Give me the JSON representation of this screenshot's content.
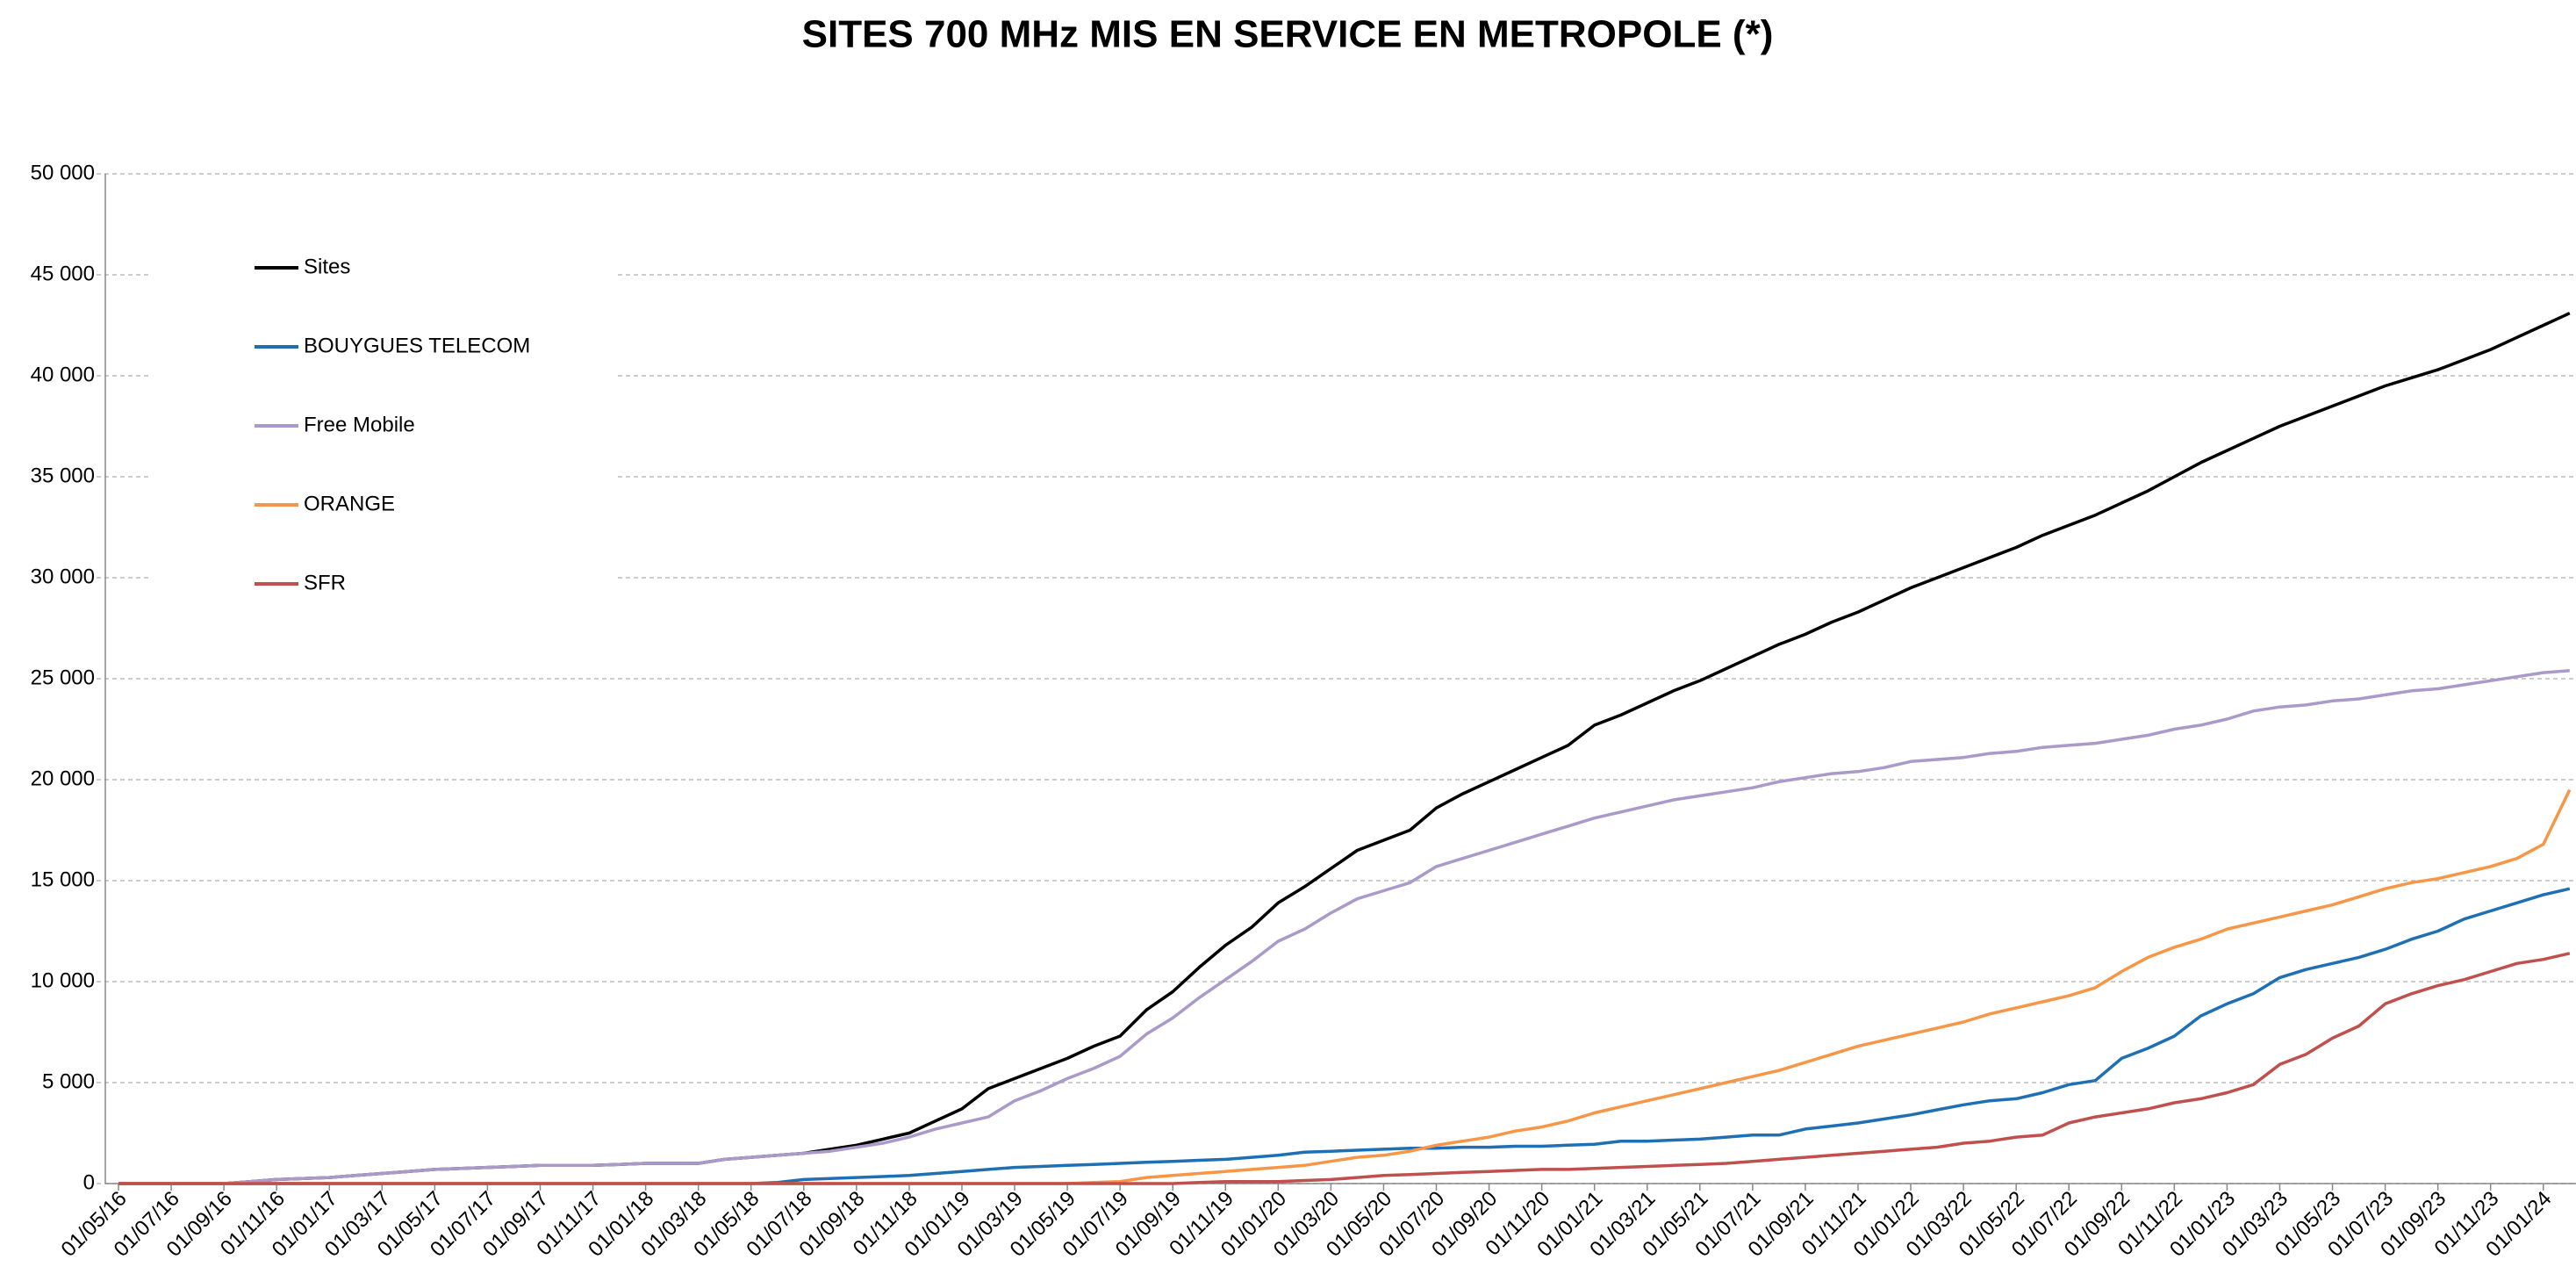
{
  "chart_data": {
    "type": "line",
    "title": "SITES 700 MHz MIS EN SERVICE EN METROPOLE (*)",
    "categories": [
      "01/05/16",
      null,
      "01/07/16",
      null,
      "01/09/16",
      null,
      "01/11/16",
      null,
      "01/01/17",
      null,
      "01/03/17",
      null,
      "01/05/17",
      null,
      "01/07/17",
      null,
      "01/09/17",
      null,
      "01/11/17",
      null,
      "01/01/18",
      null,
      "01/03/18",
      null,
      "01/05/18",
      null,
      "01/07/18",
      null,
      "01/09/18",
      null,
      "01/11/18",
      null,
      "01/01/19",
      null,
      "01/03/19",
      null,
      "01/05/19",
      null,
      "01/07/19",
      null,
      "01/09/19",
      null,
      "01/11/19",
      null,
      "01/01/20",
      null,
      "01/03/20",
      null,
      "01/05/20",
      null,
      "01/07/20",
      null,
      "01/09/20",
      null,
      "01/11/20",
      null,
      "01/01/21",
      null,
      "01/03/21",
      null,
      "01/05/21",
      null,
      "01/07/21",
      null,
      "01/09/21",
      null,
      "01/11/21",
      null,
      "01/01/22",
      null,
      "01/03/22",
      null,
      "01/05/22",
      null,
      "01/07/22",
      null,
      "01/09/22",
      null,
      "01/11/22",
      null,
      "01/01/23",
      null,
      "01/03/23",
      null,
      "01/05/23",
      null,
      "01/07/23",
      null,
      "01/09/23",
      null,
      "01/11/23",
      null,
      "01/01/24",
      null
    ],
    "series": [
      {
        "name": "Sites",
        "color": "#000000",
        "values": [
          0,
          0,
          0,
          0,
          0,
          100,
          200,
          250,
          300,
          400,
          500,
          600,
          700,
          750,
          800,
          850,
          900,
          900,
          900,
          950,
          1000,
          1000,
          1000,
          1200,
          1300,
          1400,
          1500,
          1700,
          1900,
          2200,
          2500,
          3100,
          3700,
          4700,
          5200,
          5700,
          6200,
          6800,
          7300,
          8600,
          9500,
          10700,
          11800,
          12700,
          13900,
          14700,
          15600,
          16500,
          17000,
          17500,
          18600,
          19300,
          19900,
          20500,
          21100,
          21700,
          22700,
          23200,
          23800,
          24400,
          24900,
          25500,
          26100,
          26700,
          27200,
          27800,
          28300,
          28900,
          29500,
          30000,
          30500,
          31000,
          31500,
          32100,
          32600,
          33100,
          33700,
          34300,
          35000,
          35700,
          36300,
          36900,
          37500,
          38000,
          38500,
          39000,
          39500,
          39900,
          40300,
          40800,
          41300,
          41900,
          42500,
          43100
        ]
      },
      {
        "name": "BOUYGUES TELECOM",
        "color": "#1f6fb5",
        "values": [
          0,
          0,
          0,
          0,
          0,
          0,
          0,
          0,
          0,
          0,
          0,
          0,
          0,
          0,
          0,
          0,
          0,
          0,
          0,
          0,
          0,
          0,
          0,
          0,
          0,
          50,
          200,
          250,
          300,
          350,
          400,
          500,
          600,
          700,
          800,
          850,
          900,
          950,
          1000,
          1050,
          1100,
          1150,
          1200,
          1300,
          1400,
          1550,
          1600,
          1650,
          1700,
          1750,
          1750,
          1800,
          1800,
          1850,
          1850,
          1900,
          1950,
          2100,
          2100,
          2150,
          2200,
          2300,
          2400,
          2400,
          2700,
          2850,
          3000,
          3200,
          3400,
          3650,
          3900,
          4100,
          4200,
          4500,
          4900,
          5100,
          6200,
          6700,
          7300,
          8300,
          8900,
          9400,
          10200,
          10600,
          10900,
          11200,
          11600,
          12100,
          12500,
          13100,
          13500,
          13900,
          14300,
          14600
        ]
      },
      {
        "name": "Free Mobile",
        "color": "#a99ac9",
        "values": [
          0,
          0,
          0,
          0,
          0,
          100,
          200,
          250,
          300,
          400,
          500,
          600,
          700,
          750,
          800,
          850,
          900,
          900,
          900,
          950,
          1000,
          1000,
          1000,
          1200,
          1300,
          1400,
          1500,
          1600,
          1800,
          2000,
          2300,
          2700,
          3000,
          3300,
          4100,
          4600,
          5200,
          5700,
          6300,
          7400,
          8200,
          9200,
          10100,
          11000,
          12000,
          12600,
          13400,
          14100,
          14500,
          14900,
          15700,
          16100,
          16500,
          16900,
          17300,
          17700,
          18100,
          18400,
          18700,
          19000,
          19200,
          19400,
          19600,
          19900,
          20100,
          20300,
          20400,
          20600,
          20900,
          21000,
          21100,
          21300,
          21400,
          21600,
          21700,
          21800,
          22000,
          22200,
          22500,
          22700,
          23000,
          23400,
          23600,
          23700,
          23900,
          24000,
          24200,
          24400,
          24500,
          24700,
          24900,
          25100,
          25300,
          25400
        ]
      },
      {
        "name": "ORANGE",
        "color": "#f79646",
        "values": [
          0,
          0,
          0,
          0,
          0,
          0,
          0,
          0,
          0,
          0,
          0,
          0,
          0,
          0,
          0,
          0,
          0,
          0,
          0,
          0,
          0,
          0,
          0,
          0,
          0,
          0,
          0,
          0,
          0,
          0,
          0,
          0,
          0,
          0,
          0,
          0,
          0,
          50,
          100,
          300,
          400,
          500,
          600,
          700,
          800,
          900,
          1100,
          1300,
          1400,
          1600,
          1900,
          2100,
          2300,
          2600,
          2800,
          3100,
          3500,
          3800,
          4100,
          4400,
          4700,
          5000,
          5300,
          5600,
          6000,
          6400,
          6800,
          7100,
          7400,
          7700,
          8000,
          8400,
          8700,
          9000,
          9300,
          9700,
          10500,
          11200,
          11700,
          12100,
          12600,
          12900,
          13200,
          13500,
          13800,
          14200,
          14600,
          14900,
          15100,
          15400,
          15700,
          16100,
          16800,
          19500
        ]
      },
      {
        "name": "SFR",
        "color": "#c0504d",
        "values": [
          0,
          0,
          0,
          0,
          0,
          0,
          0,
          0,
          0,
          0,
          0,
          0,
          0,
          0,
          0,
          0,
          0,
          0,
          0,
          0,
          0,
          0,
          0,
          0,
          0,
          0,
          0,
          0,
          0,
          0,
          0,
          0,
          0,
          0,
          0,
          0,
          0,
          0,
          0,
          0,
          0,
          50,
          100,
          100,
          100,
          150,
          200,
          300,
          400,
          450,
          500,
          550,
          600,
          650,
          700,
          700,
          750,
          800,
          850,
          900,
          950,
          1000,
          1100,
          1200,
          1300,
          1400,
          1500,
          1600,
          1700,
          1800,
          2000,
          2100,
          2300,
          2400,
          3000,
          3300,
          3500,
          3700,
          4000,
          4200,
          4500,
          4900,
          5900,
          6400,
          7200,
          7800,
          8900,
          9400,
          9800,
          10100,
          10500,
          10900,
          11100,
          11400
        ]
      }
    ],
    "ylim": [
      0,
      50000
    ],
    "yticks": [
      0,
      {
        "value": 5000,
        "label": "5 000"
      },
      {
        "value": 10000,
        "label": "10 000"
      },
      {
        "value": 15000,
        "label": "15 000"
      },
      {
        "value": 20000,
        "label": "20 000"
      },
      {
        "value": 25000,
        "label": "25 000"
      },
      {
        "value": 30000,
        "label": "30 000"
      },
      {
        "value": 35000,
        "label": "35 000"
      },
      {
        "value": 40000,
        "label": "40 000"
      },
      {
        "value": 45000,
        "label": "45 000"
      },
      {
        "value": 50000,
        "label": "50 000"
      }
    ],
    "grid": true,
    "legend": "upper left"
  }
}
